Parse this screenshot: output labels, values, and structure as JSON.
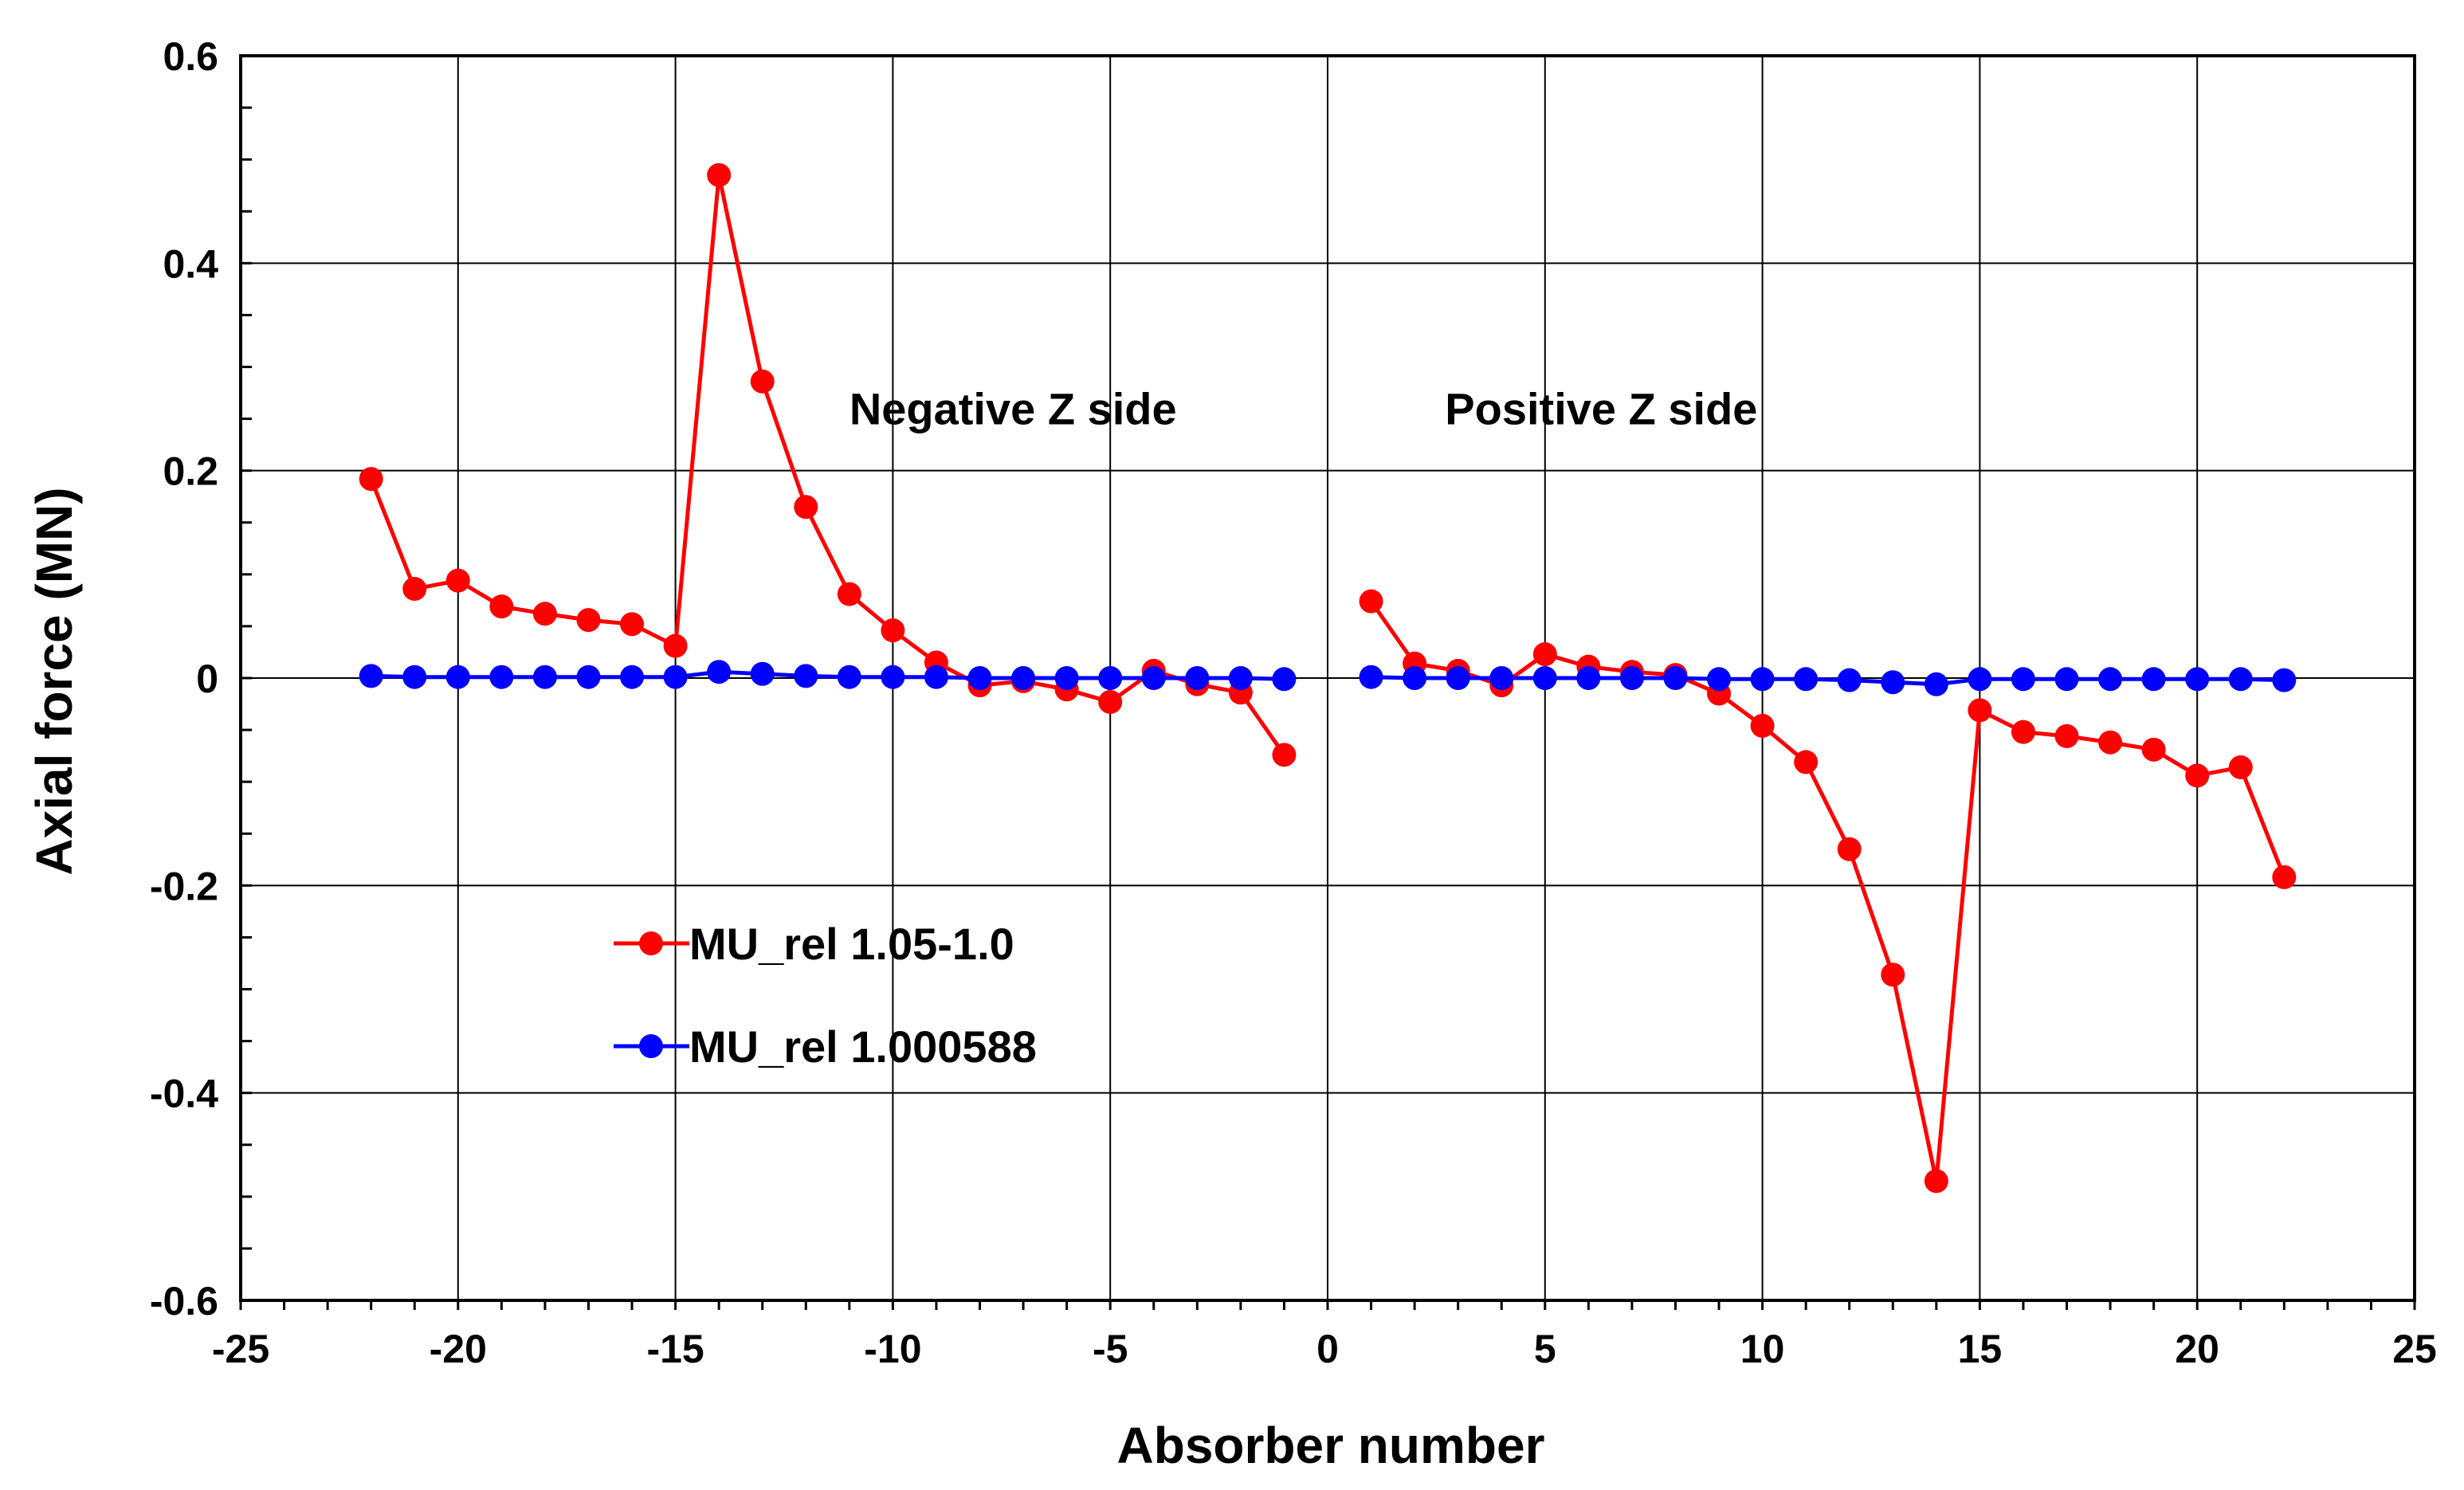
{
  "chart_data": {
    "type": "line",
    "xlabel": "Absorber number",
    "ylabel": "Axial force (MN)",
    "xlim": [
      -25,
      25
    ],
    "ylim": [
      -0.6,
      0.6
    ],
    "xticks": [
      -25,
      -20,
      -15,
      -10,
      -5,
      0,
      5,
      10,
      15,
      20,
      25
    ],
    "yticks": [
      -0.6,
      -0.4,
      -0.2,
      0,
      0.2,
      0.4,
      0.6
    ],
    "xtick_labels": [
      "-25",
      "-20",
      "-15",
      "-10",
      "-5",
      "0",
      "5",
      "10",
      "15",
      "20",
      "25"
    ],
    "ytick_labels": [
      "-0.6",
      "-0.4",
      "-0.2",
      "0",
      "0.2",
      "0.4",
      "0.6"
    ],
    "grid": true,
    "legend_position": "lower-left",
    "annotations": [
      {
        "text": "Negative Z side",
        "x": -11,
        "y": 0.26
      },
      {
        "text": "Positive Z side",
        "x": 2.7,
        "y": 0.26
      }
    ],
    "series": [
      {
        "name": "MU_rel 1.05-1.0",
        "color": "#ff0000",
        "segments": [
          {
            "x": [
              -22,
              -21,
              -20,
              -19,
              -18,
              -17,
              -16,
              -15,
              -14,
              -13,
              -12,
              -11,
              -10,
              -9,
              -8,
              -7,
              -6,
              -5,
              -4,
              -3,
              -2,
              -1
            ],
            "y": [
              0.192,
              0.086,
              0.094,
              0.069,
              0.062,
              0.056,
              0.052,
              0.031,
              0.485,
              0.286,
              0.165,
              0.081,
              0.046,
              0.015,
              -0.007,
              -0.003,
              -0.011,
              -0.023,
              0.007,
              -0.006,
              -0.014,
              -0.074
            ]
          },
          {
            "x": [
              1,
              2,
              3,
              4,
              5,
              6,
              7,
              8,
              9,
              10,
              11,
              12,
              13,
              14,
              15,
              16,
              17,
              18,
              19,
              20,
              21,
              22
            ],
            "y": [
              0.074,
              0.014,
              0.007,
              -0.007,
              0.023,
              0.011,
              0.006,
              0.003,
              -0.015,
              -0.046,
              -0.081,
              -0.165,
              -0.286,
              -0.485,
              -0.031,
              -0.052,
              -0.056,
              -0.062,
              -0.069,
              -0.094,
              -0.086,
              -0.192
            ]
          }
        ]
      },
      {
        "name": "MU_rel 1.000588",
        "color": "#0000ff",
        "segments": [
          {
            "x": [
              -22,
              -21,
              -20,
              -19,
              -18,
              -17,
              -16,
              -15,
              -14,
              -13,
              -12,
              -11,
              -10,
              -9,
              -8,
              -7,
              -6,
              -5,
              -4,
              -3,
              -2,
              -1
            ],
            "y": [
              0.002,
              0.001,
              0.001,
              0.001,
              0.001,
              0.001,
              0.001,
              0.001,
              0.006,
              0.004,
              0.002,
              0.001,
              0.001,
              0.001,
              0.0,
              0.0,
              0.0,
              0.0,
              0.0,
              0.0,
              0.0,
              -0.001
            ]
          },
          {
            "x": [
              1,
              2,
              3,
              4,
              5,
              6,
              7,
              8,
              9,
              10,
              11,
              12,
              13,
              14,
              15,
              16,
              17,
              18,
              19,
              20,
              21,
              22
            ],
            "y": [
              0.001,
              0.0,
              0.0,
              0.0,
              0.0,
              0.0,
              0.0,
              0.0,
              -0.001,
              -0.001,
              -0.001,
              -0.002,
              -0.004,
              -0.006,
              -0.001,
              -0.001,
              -0.001,
              -0.001,
              -0.001,
              -0.001,
              -0.001,
              -0.002
            ]
          }
        ]
      }
    ]
  }
}
